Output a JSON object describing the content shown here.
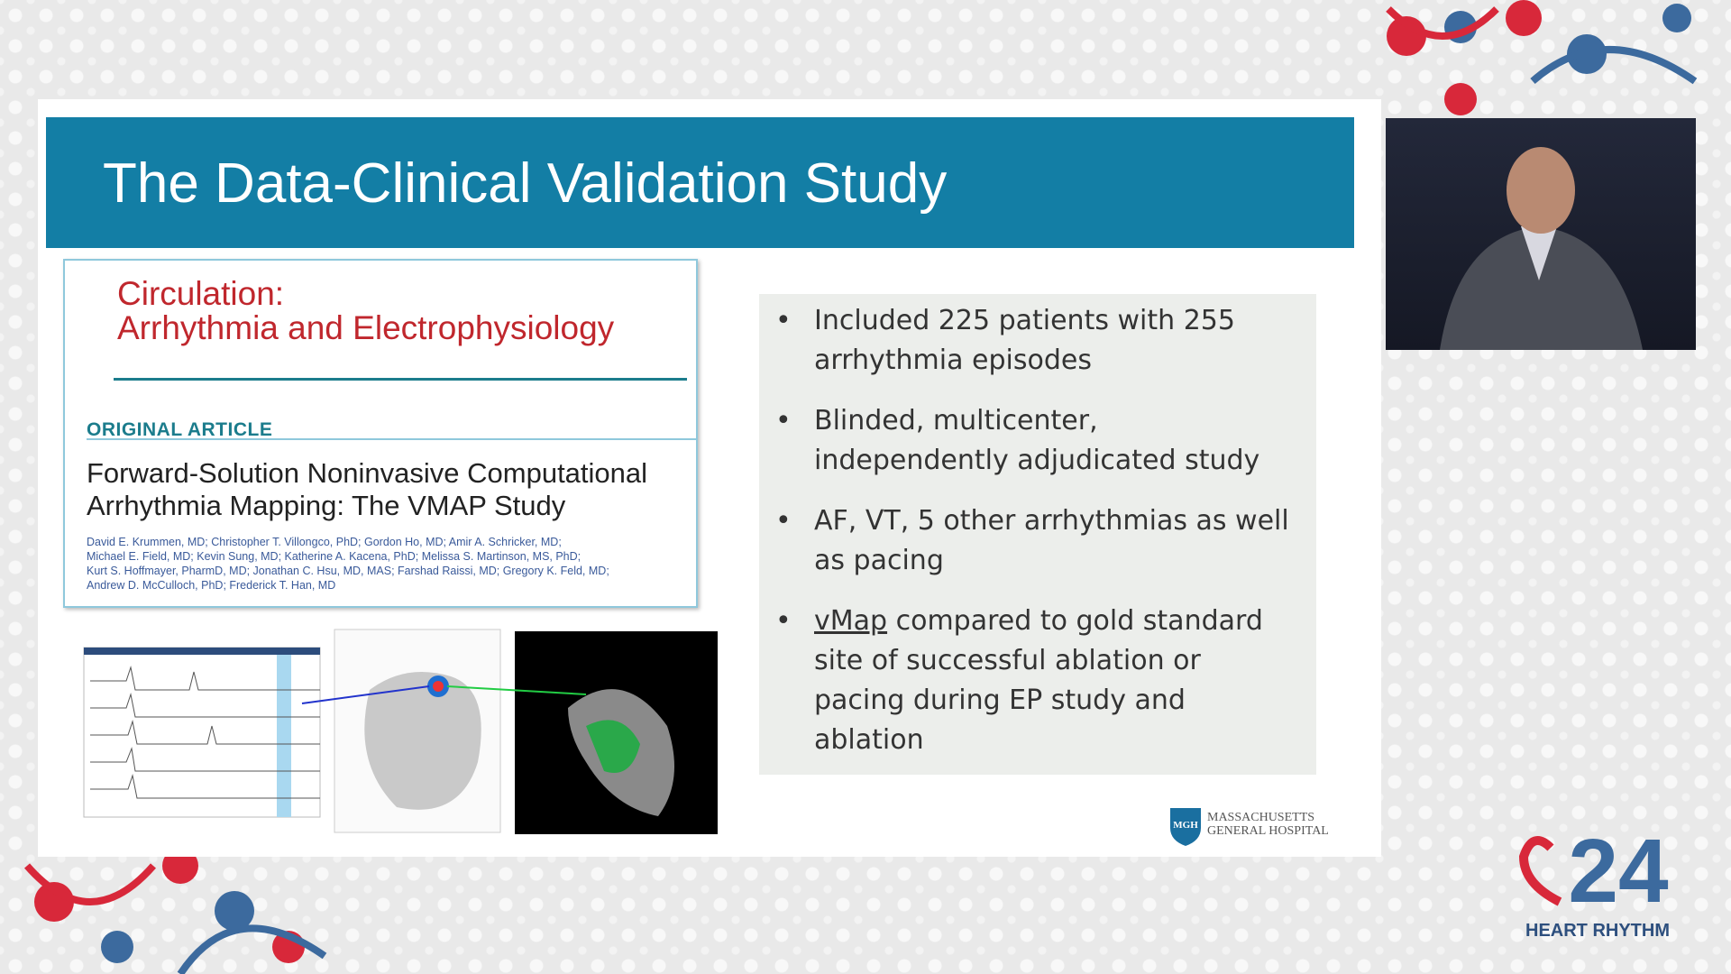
{
  "slide": {
    "title": "The Data-Clinical Validation Study",
    "article": {
      "journal_line1": "Circulation:",
      "journal_line2": "Arrhythmia and Electrophysiology",
      "section": "ORIGINAL ARTICLE",
      "title_line1": "Forward-Solution Noninvasive Computational",
      "title_line2": "Arrhythmia Mapping: The VMAP Study",
      "authors": [
        "David E. Krummen, MD; Christopher T. Villongco, PhD; Gordon Ho, MD; Amir A. Schricker, MD;",
        "Michael E. Field, MD; Kevin Sung, MD; Katherine A. Kacena, PhD; Melissa S. Martinson, MS, PhD;",
        "Kurt S. Hoffmayer, PharmD, MD; Jonathan C. Hsu, MD, MAS; Farshad Raissi, MD; Gregory K. Feld, MD;",
        "Andrew D. McCulloch, PhD; Frederick T. Han, MD"
      ]
    },
    "bullets": [
      {
        "text": "Included 225 patients with 255 arrhythmia episodes"
      },
      {
        "text": "Blinded, multicenter, independently adjudicated study"
      },
      {
        "text": "AF, VT, 5 other arrhythmias as well as pacing"
      },
      {
        "link": "vMap",
        "text": " compared to gold standard site of successful ablation or pacing during EP study and ablation"
      }
    ],
    "logo": {
      "badge": "MGH",
      "line1": "MASSACHUSETTS",
      "line2": "GENERAL HOSPITAL"
    }
  },
  "event": {
    "number": "24",
    "name": "HEART RHYTHM"
  }
}
